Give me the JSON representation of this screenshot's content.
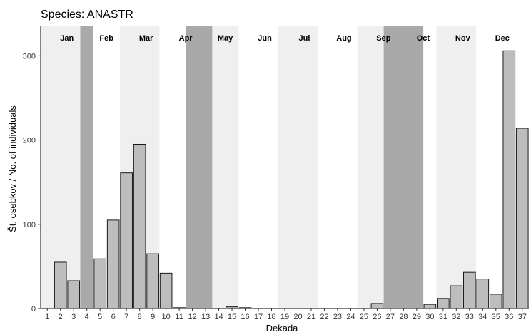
{
  "chart_data": {
    "type": "bar",
    "title": "Species: ANASTR",
    "xlabel": "Dekada",
    "ylabel": "Št. osebkov / No. of individuals",
    "x": [
      1,
      2,
      3,
      4,
      5,
      6,
      7,
      8,
      9,
      10,
      11,
      12,
      13,
      14,
      15,
      16,
      17,
      18,
      19,
      20,
      21,
      22,
      23,
      24,
      25,
      26,
      27,
      28,
      29,
      30,
      31,
      32,
      33,
      34,
      35,
      36,
      37
    ],
    "values": [
      0,
      55,
      33,
      0,
      59,
      105,
      161,
      195,
      65,
      42,
      1,
      0,
      0,
      0,
      2,
      1,
      0,
      0,
      0,
      0,
      0,
      0,
      0,
      0,
      0,
      6,
      0,
      0,
      0,
      5,
      12,
      27,
      43,
      35,
      17,
      306,
      214
    ],
    "ylim": [
      0,
      335
    ],
    "yticks": [
      0,
      100,
      200,
      300
    ],
    "grid": false,
    "months": [
      {
        "label": "Jan",
        "start": 1,
        "end": 3,
        "shade": "light"
      },
      {
        "label": "Feb",
        "start": 4,
        "end": 6,
        "shade": "none"
      },
      {
        "label": "Mar",
        "start": 7,
        "end": 9,
        "shade": "light"
      },
      {
        "label": "Apr",
        "start": 10,
        "end": 12,
        "shade": "none"
      },
      {
        "label": "May",
        "start": 13,
        "end": 15,
        "shade": "light"
      },
      {
        "label": "Jun",
        "start": 16,
        "end": 18,
        "shade": "none"
      },
      {
        "label": "Jul",
        "start": 19,
        "end": 21,
        "shade": "light"
      },
      {
        "label": "Aug",
        "start": 22,
        "end": 24,
        "shade": "none"
      },
      {
        "label": "Sep",
        "start": 25,
        "end": 27,
        "shade": "light"
      },
      {
        "label": "Oct",
        "start": 28,
        "end": 30,
        "shade": "none"
      },
      {
        "label": "Nov",
        "start": 31,
        "end": 33,
        "shade": "light"
      },
      {
        "label": "Dec",
        "start": 34,
        "end": 36,
        "shade": "none"
      }
    ],
    "dark_bands": [
      {
        "start": 4,
        "end": 4
      },
      {
        "start": 12,
        "end": 13
      },
      {
        "start": 27,
        "end": 29
      }
    ],
    "colors": {
      "bar_fill": "#bdbdbd",
      "bar_stroke": "#1a1a1a",
      "light_band": "#efefef",
      "dark_band": "#a9a9a9"
    }
  }
}
